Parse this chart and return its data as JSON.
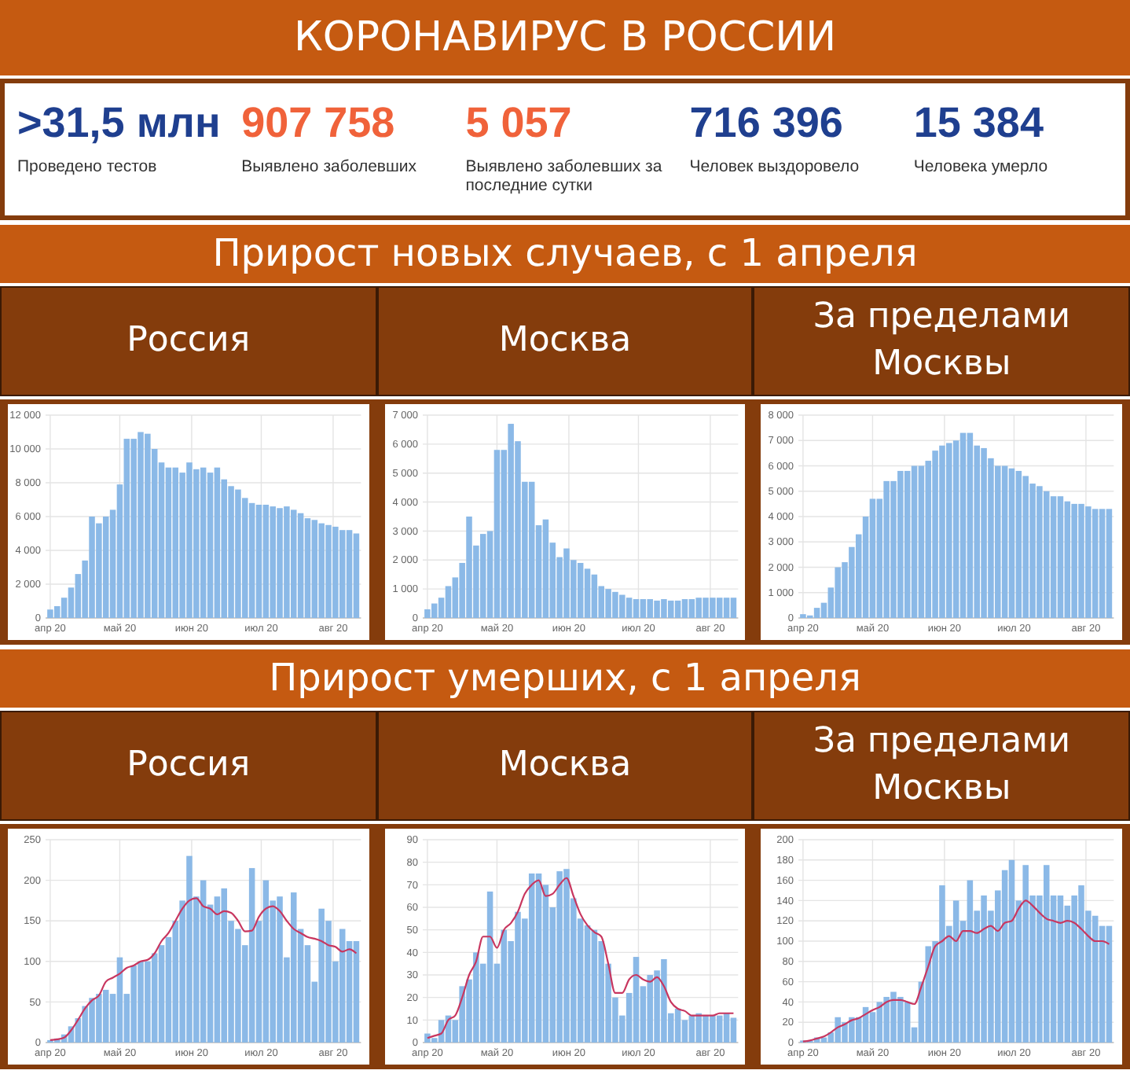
{
  "chart_data": [
    {
      "type": "other",
      "title": "КОРОНАВИРУС В РОССИИ",
      "annotations": [
        ">31,5 млн",
        "Проведено тестов",
        "907 758",
        "Выявлено заболевших",
        "5 057",
        "Выявлено заболевших за последние сутки",
        "716 396",
        "Человек выздоровело",
        "15 384",
        "Человека умерло"
      ]
    },
    {
      "type": "other",
      "title": "Прирост новых случаев, с 1 апреля"
    },
    {
      "type": "bar",
      "title": "Россия",
      "color": "#8bb9e7",
      "grid": true,
      "x": [
        "2020-04-01",
        "2020-04-04",
        "2020-04-07",
        "2020-04-10",
        "2020-04-13",
        "2020-04-16",
        "2020-04-19",
        "2020-04-22",
        "2020-04-25",
        "2020-04-28",
        "2020-05-01",
        "2020-05-04",
        "2020-05-07",
        "2020-05-10",
        "2020-05-13",
        "2020-05-16",
        "2020-05-19",
        "2020-05-22",
        "2020-05-25",
        "2020-05-28",
        "2020-05-31",
        "2020-06-03",
        "2020-06-06",
        "2020-06-09",
        "2020-06-12",
        "2020-06-15",
        "2020-06-18",
        "2020-06-21",
        "2020-06-24",
        "2020-06-27",
        "2020-06-30",
        "2020-07-03",
        "2020-07-06",
        "2020-07-09",
        "2020-07-12",
        "2020-07-15",
        "2020-07-18",
        "2020-07-21",
        "2020-07-24",
        "2020-07-27",
        "2020-07-30",
        "2020-08-02",
        "2020-08-05",
        "2020-08-08",
        "2020-08-11"
      ],
      "values": [
        500,
        700,
        1200,
        1800,
        2600,
        3400,
        6000,
        5600,
        6000,
        6400,
        7900,
        10600,
        10600,
        11000,
        10900,
        10000,
        9200,
        8900,
        8900,
        8600,
        9200,
        8800,
        8900,
        8600,
        8900,
        8200,
        7800,
        7600,
        7100,
        6800,
        6700,
        6700,
        6600,
        6500,
        6600,
        6400,
        6200,
        5900,
        5800,
        5600,
        5500,
        5400,
        5200,
        5200,
        5000
      ],
      "xlim": [
        "2020-03-30",
        "2020-08-13"
      ],
      "xticks": [
        {
          "value": "2020-04-01",
          "label": "апр 20"
        },
        {
          "value": "2020-05-01",
          "label": "май 20"
        },
        {
          "value": "2020-06-01",
          "label": "июн 20"
        },
        {
          "value": "2020-07-01",
          "label": "июл 20"
        },
        {
          "value": "2020-08-01",
          "label": "авг 20"
        }
      ],
      "ylim": [
        0,
        12000
      ],
      "yticks": [
        0,
        {
          "value": 2000,
          "label": "2 000"
        },
        {
          "value": 4000,
          "label": "4 000"
        },
        {
          "value": 6000,
          "label": "6 000"
        },
        {
          "value": 8000,
          "label": "8 000"
        },
        {
          "value": 10000,
          "label": "10 000"
        },
        {
          "value": 12000,
          "label": "12 000"
        }
      ]
    },
    {
      "type": "bar",
      "title": "Москва",
      "color": "#8bb9e7",
      "grid": true,
      "x": [
        "2020-04-01",
        "2020-04-04",
        "2020-04-07",
        "2020-04-10",
        "2020-04-13",
        "2020-04-16",
        "2020-04-19",
        "2020-04-22",
        "2020-04-25",
        "2020-04-28",
        "2020-05-01",
        "2020-05-04",
        "2020-05-07",
        "2020-05-10",
        "2020-05-13",
        "2020-05-16",
        "2020-05-19",
        "2020-05-22",
        "2020-05-25",
        "2020-05-28",
        "2020-05-31",
        "2020-06-03",
        "2020-06-06",
        "2020-06-09",
        "2020-06-12",
        "2020-06-15",
        "2020-06-18",
        "2020-06-21",
        "2020-06-24",
        "2020-06-27",
        "2020-06-30",
        "2020-07-03",
        "2020-07-06",
        "2020-07-09",
        "2020-07-12",
        "2020-07-15",
        "2020-07-18",
        "2020-07-21",
        "2020-07-24",
        "2020-07-27",
        "2020-07-30",
        "2020-08-02",
        "2020-08-05",
        "2020-08-08",
        "2020-08-11"
      ],
      "values": [
        300,
        500,
        700,
        1100,
        1400,
        1900,
        3500,
        2500,
        2900,
        3000,
        5800,
        5800,
        6700,
        6100,
        4700,
        4700,
        3200,
        3400,
        2600,
        2100,
        2400,
        2000,
        1900,
        1700,
        1500,
        1100,
        1000,
        900,
        800,
        700,
        650,
        650,
        650,
        600,
        650,
        600,
        600,
        650,
        650,
        700,
        700,
        700,
        700,
        700,
        700
      ],
      "xlim": [
        "2020-03-30",
        "2020-08-13"
      ],
      "xticks": [
        {
          "value": "2020-04-01",
          "label": "апр 20"
        },
        {
          "value": "2020-05-01",
          "label": "май 20"
        },
        {
          "value": "2020-06-01",
          "label": "июн 20"
        },
        {
          "value": "2020-07-01",
          "label": "июл 20"
        },
        {
          "value": "2020-08-01",
          "label": "авг 20"
        }
      ],
      "ylim": [
        0,
        7000
      ],
      "yticks": [
        0,
        {
          "value": 1000,
          "label": "1 000"
        },
        {
          "value": 2000,
          "label": "2 000"
        },
        {
          "value": 3000,
          "label": "3 000"
        },
        {
          "value": 4000,
          "label": "4 000"
        },
        {
          "value": 5000,
          "label": "5 000"
        },
        {
          "value": 6000,
          "label": "6 000"
        },
        {
          "value": 7000,
          "label": "7 000"
        }
      ]
    },
    {
      "type": "bar",
      "title": "За пределами Москвы",
      "color": "#8bb9e7",
      "grid": true,
      "x": [
        "2020-04-01",
        "2020-04-04",
        "2020-04-07",
        "2020-04-10",
        "2020-04-13",
        "2020-04-16",
        "2020-04-19",
        "2020-04-22",
        "2020-04-25",
        "2020-04-28",
        "2020-05-01",
        "2020-05-04",
        "2020-05-07",
        "2020-05-10",
        "2020-05-13",
        "2020-05-16",
        "2020-05-19",
        "2020-05-22",
        "2020-05-25",
        "2020-05-28",
        "2020-05-31",
        "2020-06-03",
        "2020-06-06",
        "2020-06-09",
        "2020-06-12",
        "2020-06-15",
        "2020-06-18",
        "2020-06-21",
        "2020-06-24",
        "2020-06-27",
        "2020-06-30",
        "2020-07-03",
        "2020-07-06",
        "2020-07-09",
        "2020-07-12",
        "2020-07-15",
        "2020-07-18",
        "2020-07-21",
        "2020-07-24",
        "2020-07-27",
        "2020-07-30",
        "2020-08-02",
        "2020-08-05",
        "2020-08-08",
        "2020-08-11"
      ],
      "values": [
        150,
        100,
        400,
        600,
        1200,
        2000,
        2200,
        2800,
        3300,
        4000,
        4700,
        4700,
        5400,
        5400,
        5800,
        5800,
        6000,
        6000,
        6200,
        6600,
        6800,
        6900,
        7000,
        7300,
        7300,
        6800,
        6700,
        6300,
        6000,
        6000,
        5900,
        5800,
        5600,
        5300,
        5200,
        5000,
        4800,
        4800,
        4600,
        4500,
        4500,
        4400,
        4300,
        4300,
        4300
      ],
      "xlim": [
        "2020-03-30",
        "2020-08-13"
      ],
      "xticks": [
        {
          "value": "2020-04-01",
          "label": "апр 20"
        },
        {
          "value": "2020-05-01",
          "label": "май 20"
        },
        {
          "value": "2020-06-01",
          "label": "июн 20"
        },
        {
          "value": "2020-07-01",
          "label": "июл 20"
        },
        {
          "value": "2020-08-01",
          "label": "авг 20"
        }
      ],
      "ylim": [
        0,
        8000
      ],
      "yticks": [
        0,
        {
          "value": 1000,
          "label": "1 000"
        },
        {
          "value": 2000,
          "label": "2 000"
        },
        {
          "value": 3000,
          "label": "3 000"
        },
        {
          "value": 4000,
          "label": "4 000"
        },
        {
          "value": 5000,
          "label": "5 000"
        },
        {
          "value": 6000,
          "label": "6 000"
        },
        {
          "value": 7000,
          "label": "7 000"
        },
        {
          "value": 8000,
          "label": "8 000"
        }
      ]
    },
    {
      "type": "other",
      "title": "Прирост умерших, с 1 апреля"
    },
    {
      "type": "bar",
      "title": "Россия",
      "grid": true,
      "x": [
        "2020-04-01",
        "2020-04-04",
        "2020-04-07",
        "2020-04-10",
        "2020-04-13",
        "2020-04-16",
        "2020-04-19",
        "2020-04-22",
        "2020-04-25",
        "2020-04-28",
        "2020-05-01",
        "2020-05-04",
        "2020-05-07",
        "2020-05-10",
        "2020-05-13",
        "2020-05-16",
        "2020-05-19",
        "2020-05-22",
        "2020-05-25",
        "2020-05-28",
        "2020-05-31",
        "2020-06-03",
        "2020-06-06",
        "2020-06-09",
        "2020-06-12",
        "2020-06-15",
        "2020-06-18",
        "2020-06-21",
        "2020-06-24",
        "2020-06-27",
        "2020-06-30",
        "2020-07-03",
        "2020-07-06",
        "2020-07-09",
        "2020-07-12",
        "2020-07-15",
        "2020-07-18",
        "2020-07-21",
        "2020-07-24",
        "2020-07-27",
        "2020-07-30",
        "2020-08-02",
        "2020-08-05",
        "2020-08-08",
        "2020-08-11"
      ],
      "series": [
        {
          "color": "#8bb9e7",
          "values": [
            3,
            5,
            10,
            20,
            30,
            45,
            55,
            60,
            65,
            60,
            105,
            60,
            95,
            100,
            100,
            110,
            120,
            130,
            150,
            175,
            230,
            180,
            200,
            170,
            180,
            190,
            150,
            140,
            120,
            215,
            150,
            200,
            175,
            180,
            105,
            185,
            140,
            120,
            75,
            165,
            150,
            100,
            140,
            125,
            125
          ]
        },
        {
          "type": "line",
          "color": "#c8365f",
          "values": [
            3,
            4,
            6,
            15,
            28,
            42,
            52,
            58,
            75,
            80,
            85,
            92,
            95,
            100,
            102,
            110,
            125,
            135,
            150,
            165,
            175,
            178,
            168,
            165,
            158,
            162,
            160,
            150,
            137,
            138,
            155,
            165,
            168,
            162,
            150,
            140,
            135,
            130,
            128,
            125,
            120,
            118,
            112,
            115,
            110
          ]
        }
      ],
      "xlim": [
        "2020-03-30",
        "2020-08-13"
      ],
      "xticks": [
        {
          "value": "2020-04-01",
          "label": "апр 20"
        },
        {
          "value": "2020-05-01",
          "label": "май 20"
        },
        {
          "value": "2020-06-01",
          "label": "июн 20"
        },
        {
          "value": "2020-07-01",
          "label": "июл 20"
        },
        {
          "value": "2020-08-01",
          "label": "авг 20"
        }
      ],
      "ylim": [
        0,
        250
      ],
      "yticks": [
        0,
        50,
        100,
        150,
        200,
        250
      ]
    },
    {
      "type": "bar",
      "title": "Москва",
      "grid": true,
      "x": [
        "2020-04-01",
        "2020-04-04",
        "2020-04-07",
        "2020-04-10",
        "2020-04-13",
        "2020-04-16",
        "2020-04-19",
        "2020-04-22",
        "2020-04-25",
        "2020-04-28",
        "2020-05-01",
        "2020-05-04",
        "2020-05-07",
        "2020-05-10",
        "2020-05-13",
        "2020-05-16",
        "2020-05-19",
        "2020-05-22",
        "2020-05-25",
        "2020-05-28",
        "2020-05-31",
        "2020-06-03",
        "2020-06-06",
        "2020-06-09",
        "2020-06-12",
        "2020-06-15",
        "2020-06-18",
        "2020-06-21",
        "2020-06-24",
        "2020-06-27",
        "2020-06-30",
        "2020-07-03",
        "2020-07-06",
        "2020-07-09",
        "2020-07-12",
        "2020-07-15",
        "2020-07-18",
        "2020-07-21",
        "2020-07-24",
        "2020-07-27",
        "2020-07-30",
        "2020-08-02",
        "2020-08-05",
        "2020-08-08",
        "2020-08-11"
      ],
      "series": [
        {
          "color": "#8bb9e7",
          "values": [
            4,
            2,
            10,
            12,
            10,
            25,
            28,
            40,
            35,
            67,
            35,
            50,
            45,
            58,
            55,
            75,
            75,
            70,
            60,
            76,
            77,
            64,
            55,
            52,
            50,
            45,
            35,
            20,
            12,
            22,
            38,
            25,
            30,
            32,
            37,
            13,
            15,
            10,
            12,
            13,
            12,
            12,
            12,
            13,
            11
          ]
        },
        {
          "type": "line",
          "color": "#c8365f",
          "values": [
            2,
            3,
            4,
            10,
            12,
            20,
            30,
            36,
            47,
            47,
            42,
            50,
            53,
            58,
            66,
            70,
            72,
            65,
            66,
            70,
            73,
            65,
            57,
            52,
            49,
            47,
            35,
            22,
            22,
            28,
            30,
            28,
            27,
            29,
            25,
            18,
            15,
            14,
            12,
            12,
            12,
            12,
            13,
            13,
            13
          ]
        }
      ],
      "xlim": [
        "2020-03-30",
        "2020-08-13"
      ],
      "xticks": [
        {
          "value": "2020-04-01",
          "label": "апр 20"
        },
        {
          "value": "2020-05-01",
          "label": "май 20"
        },
        {
          "value": "2020-06-01",
          "label": "июн 20"
        },
        {
          "value": "2020-07-01",
          "label": "июл 20"
        },
        {
          "value": "2020-08-01",
          "label": "авг 20"
        }
      ],
      "ylim": [
        0,
        90
      ],
      "yticks": [
        0,
        10,
        20,
        30,
        40,
        50,
        60,
        70,
        80,
        90
      ]
    },
    {
      "type": "bar",
      "title": "За пределами Москвы",
      "grid": true,
      "x": [
        "2020-04-01",
        "2020-04-04",
        "2020-04-07",
        "2020-04-10",
        "2020-04-13",
        "2020-04-16",
        "2020-04-19",
        "2020-04-22",
        "2020-04-25",
        "2020-04-28",
        "2020-05-01",
        "2020-05-04",
        "2020-05-07",
        "2020-05-10",
        "2020-05-13",
        "2020-05-16",
        "2020-05-19",
        "2020-05-22",
        "2020-05-25",
        "2020-05-28",
        "2020-05-31",
        "2020-06-03",
        "2020-06-06",
        "2020-06-09",
        "2020-06-12",
        "2020-06-15",
        "2020-06-18",
        "2020-06-21",
        "2020-06-24",
        "2020-06-27",
        "2020-06-30",
        "2020-07-03",
        "2020-07-06",
        "2020-07-09",
        "2020-07-12",
        "2020-07-15",
        "2020-07-18",
        "2020-07-21",
        "2020-07-24",
        "2020-07-27",
        "2020-07-30",
        "2020-08-02",
        "2020-08-05",
        "2020-08-08",
        "2020-08-11"
      ],
      "series": [
        {
          "color": "#8bb9e7",
          "values": [
            2,
            2,
            5,
            5,
            10,
            25,
            20,
            25,
            25,
            35,
            30,
            40,
            45,
            50,
            45,
            40,
            15,
            60,
            95,
            100,
            155,
            115,
            140,
            120,
            160,
            130,
            145,
            130,
            150,
            170,
            180,
            140,
            175,
            145,
            145,
            175,
            145,
            145,
            135,
            145,
            155,
            130,
            125,
            115,
            115
          ]
        },
        {
          "type": "line",
          "color": "#c8365f",
          "values": [
            1,
            2,
            4,
            6,
            10,
            15,
            18,
            22,
            24,
            28,
            32,
            35,
            40,
            42,
            42,
            40,
            38,
            55,
            75,
            95,
            100,
            105,
            100,
            110,
            110,
            108,
            112,
            115,
            110,
            118,
            120,
            132,
            140,
            135,
            128,
            122,
            120,
            118,
            120,
            118,
            112,
            105,
            100,
            100,
            97
          ]
        }
      ],
      "xlim": [
        "2020-03-30",
        "2020-08-13"
      ],
      "xticks": [
        {
          "value": "2020-04-01",
          "label": "апр 20"
        },
        {
          "value": "2020-05-01",
          "label": "май 20"
        },
        {
          "value": "2020-06-01",
          "label": "июн 20"
        },
        {
          "value": "2020-07-01",
          "label": "июл 20"
        },
        {
          "value": "2020-08-01",
          "label": "авг 20"
        }
      ],
      "ylim": [
        0,
        200
      ],
      "yticks": [
        0,
        20,
        40,
        60,
        80,
        100,
        120,
        140,
        160,
        180,
        200
      ]
    }
  ]
}
